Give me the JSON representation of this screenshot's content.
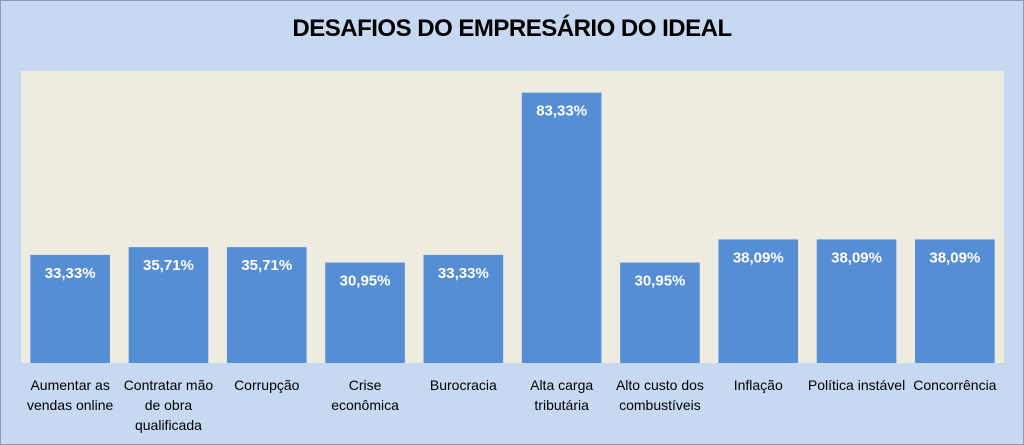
{
  "chart_data": {
    "type": "bar",
    "title": "DESAFIOS DO EMPRESÁRIO DO IDEAL",
    "categories": [
      "Aumentar as vendas online",
      "Contratar mão de obra qualificada",
      "Corrupção",
      "Crise econômica",
      "Burocracia",
      "Alta carga tributária",
      "Alto custo dos combustíveis",
      "Inflação",
      "Política instável",
      "Concorrência"
    ],
    "values": [
      33.33,
      35.71,
      35.71,
      30.95,
      33.33,
      83.33,
      30.95,
      38.09,
      38.09,
      38.09
    ],
    "value_labels": [
      "33,33%",
      "35,71%",
      "35,71%",
      "30,95%",
      "33,33%",
      "83,33%",
      "30,95%",
      "38,09%",
      "38,09%",
      "38,09%"
    ],
    "color": "#558ed5",
    "ylim": [
      0,
      90
    ]
  }
}
